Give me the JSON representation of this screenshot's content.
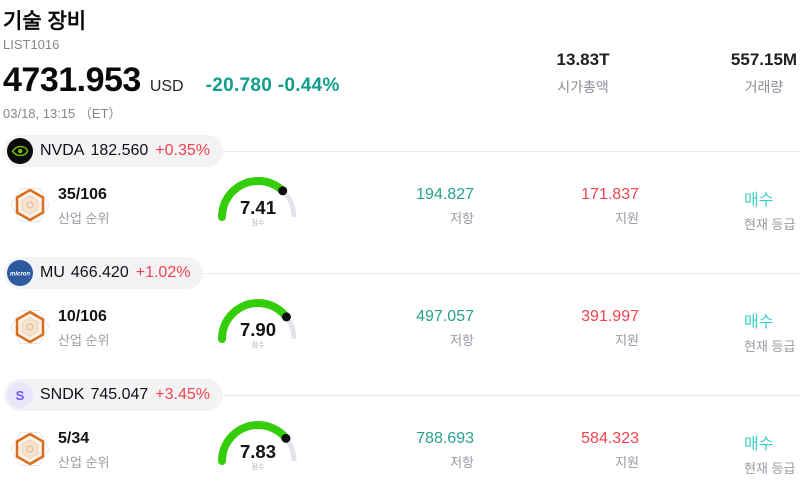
{
  "header": {
    "title": "기술 장비",
    "list_id": "LIST1016",
    "price": "4731.953",
    "currency": "USD",
    "change": "-20.780 -0.44%",
    "datetime": "03/18, 13:15 （ET）",
    "market_cap": {
      "value": "13.83T",
      "label": "시가총액"
    },
    "volume": {
      "value": "557.15M",
      "label": "거래량"
    }
  },
  "labels": {
    "industry_rank": "산업 순위",
    "score": "점수",
    "resistance": "저항",
    "support": "지원",
    "current_rating": "현재 등급"
  },
  "colors": {
    "header_change_teal": "#0f9e8b",
    "negative_red": "#f2434d",
    "resistance_teal": "#27a28d",
    "rating_cyan": "#3ed0c5",
    "gauge_green": "#34cd0a",
    "nvidia_green": "#76b900"
  },
  "stocks": [
    {
      "ticker": "NVDA",
      "logo": "nvidia-logo",
      "price": "182.560",
      "change": "+0.35%",
      "rank": "35/106",
      "score": 7.41,
      "score_display": "7.41",
      "resistance": "194.827",
      "support": "171.837",
      "rating": "매수"
    },
    {
      "ticker": "MU",
      "logo": "micron-logo",
      "price": "466.420",
      "change": "+1.02%",
      "rank": "10/106",
      "score": 7.9,
      "score_display": "7.90",
      "resistance": "497.057",
      "support": "391.997",
      "rating": "매수"
    },
    {
      "ticker": "SNDK",
      "logo": "sandisk-logo",
      "price": "745.047",
      "change": "+3.45%",
      "rank": "5/34",
      "score": 7.83,
      "score_display": "7.83",
      "resistance": "788.693",
      "support": "584.323",
      "rating": "매수"
    }
  ]
}
